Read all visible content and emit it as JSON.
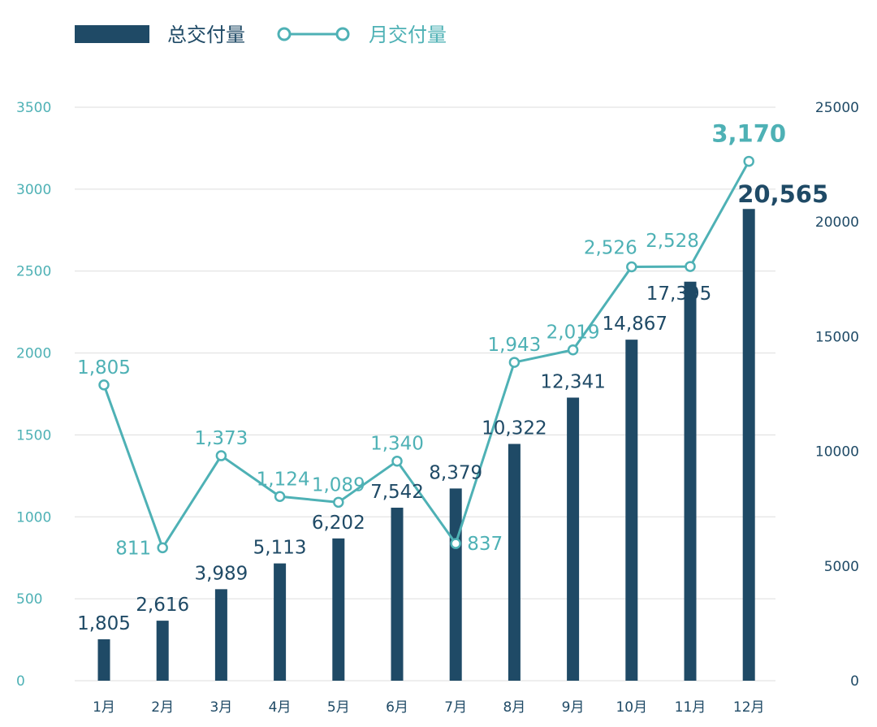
{
  "chart_data": {
    "type": "bar",
    "categories": [
      "1月",
      "2月",
      "3月",
      "4月",
      "5月",
      "6月",
      "7月",
      "8月",
      "9月",
      "10月",
      "11月",
      "12月"
    ],
    "series": [
      {
        "name": "总交付量",
        "type": "bar",
        "axis": "right",
        "values": [
          1805,
          2616,
          3989,
          5113,
          6202,
          7542,
          8379,
          10322,
          12341,
          14867,
          17395,
          20565
        ],
        "labels": [
          "1,805",
          "2,616",
          "3,989",
          "5,113",
          "6,202",
          "7,542",
          "8,379",
          "10,322",
          "12,341",
          "14,867",
          "17,395",
          "20,565"
        ]
      },
      {
        "name": "月交付量",
        "type": "line",
        "axis": "left",
        "values": [
          1805,
          811,
          1373,
          1124,
          1089,
          1340,
          837,
          1943,
          2019,
          2526,
          2528,
          3170
        ],
        "labels": [
          "1,805",
          "811",
          "1,373",
          "1,124",
          "1,089",
          "1,340",
          "837",
          "1,943",
          "2,019",
          "2,526",
          "2,528",
          "3,170"
        ]
      }
    ],
    "left_axis": {
      "ylim": [
        0,
        3500
      ],
      "ticks": [
        "0",
        "500",
        "1000",
        "1500",
        "2000",
        "2500",
        "3000",
        "3500"
      ]
    },
    "right_axis": {
      "ylim": [
        0,
        25000
      ],
      "ticks": [
        "0",
        "5000",
        "10000",
        "15000",
        "20000",
        "25000"
      ]
    },
    "grid": true,
    "legend_position": "top-left",
    "colors": {
      "bar": "#1f4a66",
      "line": "#4eb1b5",
      "grid": "#dddddd"
    }
  }
}
